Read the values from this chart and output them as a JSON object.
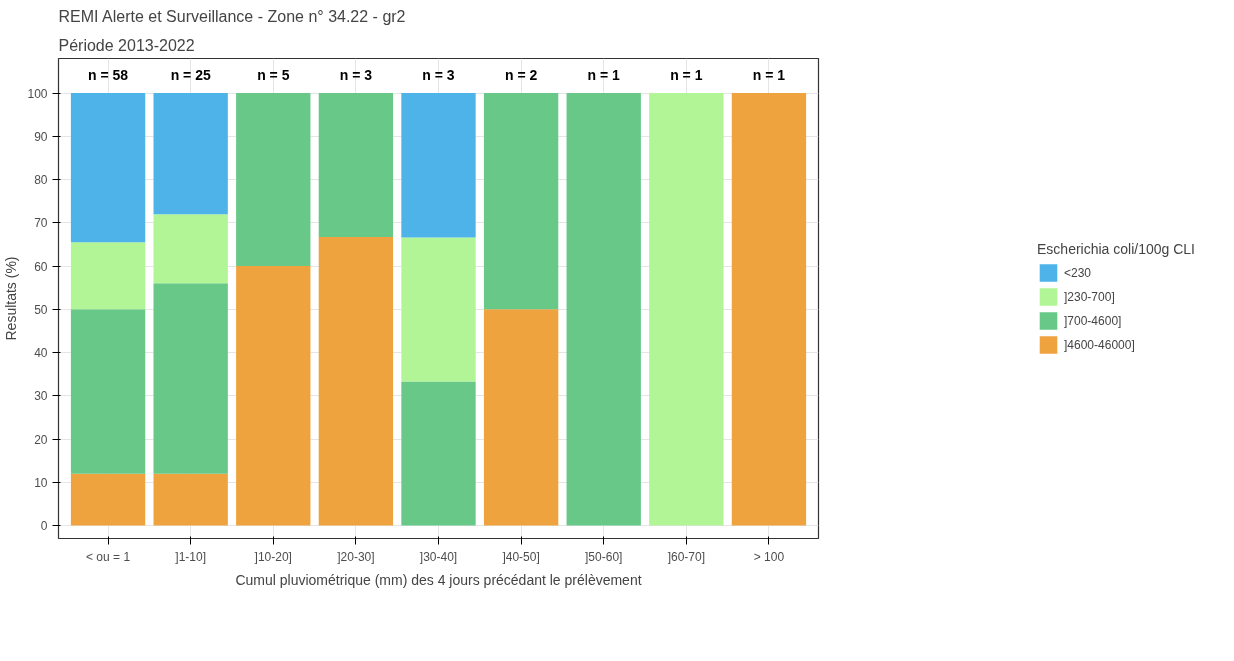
{
  "chart_data": {
    "type": "bar",
    "stacked": true,
    "title": "REMI Alerte et Surveillance - Zone n° 34.22 - gr2",
    "subtitle": "Période 2013-2022",
    "xlabel": "Cumul pluviométrique (mm) des 4 jours précédant le prélèvement",
    "ylabel": "Resultats (%)",
    "legend_title": "Escherichia coli/100g CLI",
    "categories": [
      "< ou = 1",
      "]1-10]",
      "]10-20]",
      "]20-30]",
      "]30-40]",
      "]40-50]",
      "]50-60]",
      "]60-70]",
      "> 100"
    ],
    "series": [
      {
        "name": "]4600-46000]",
        "color": "#efa33f",
        "values": [
          12,
          12,
          60,
          66.7,
          null,
          50,
          null,
          null,
          100
        ]
      },
      {
        "name": "]700-4600]",
        "color": "#67c887",
        "values": [
          38,
          44,
          40,
          33.3,
          33.3,
          50,
          100,
          null,
          null
        ]
      },
      {
        "name": "]230-700]",
        "color": "#b2f597",
        "values": [
          15.5,
          16,
          null,
          null,
          33.3,
          null,
          null,
          100,
          null
        ]
      },
      {
        "name": "<230",
        "color": "#4eb3e8",
        "values": [
          34.5,
          28,
          null,
          null,
          33.4,
          null,
          null,
          null,
          null
        ]
      }
    ],
    "ylim": [
      -3,
      108
    ],
    "yticks": [
      0,
      10,
      20,
      30,
      40,
      50,
      60,
      70,
      80,
      90,
      100
    ],
    "grid": true,
    "legend": "right",
    "annotations": [
      "n = 58",
      "n = 25",
      "n = 5",
      "n = 3",
      "n = 3",
      "n = 2",
      "n = 1",
      "n = 1",
      "n = 1"
    ]
  }
}
